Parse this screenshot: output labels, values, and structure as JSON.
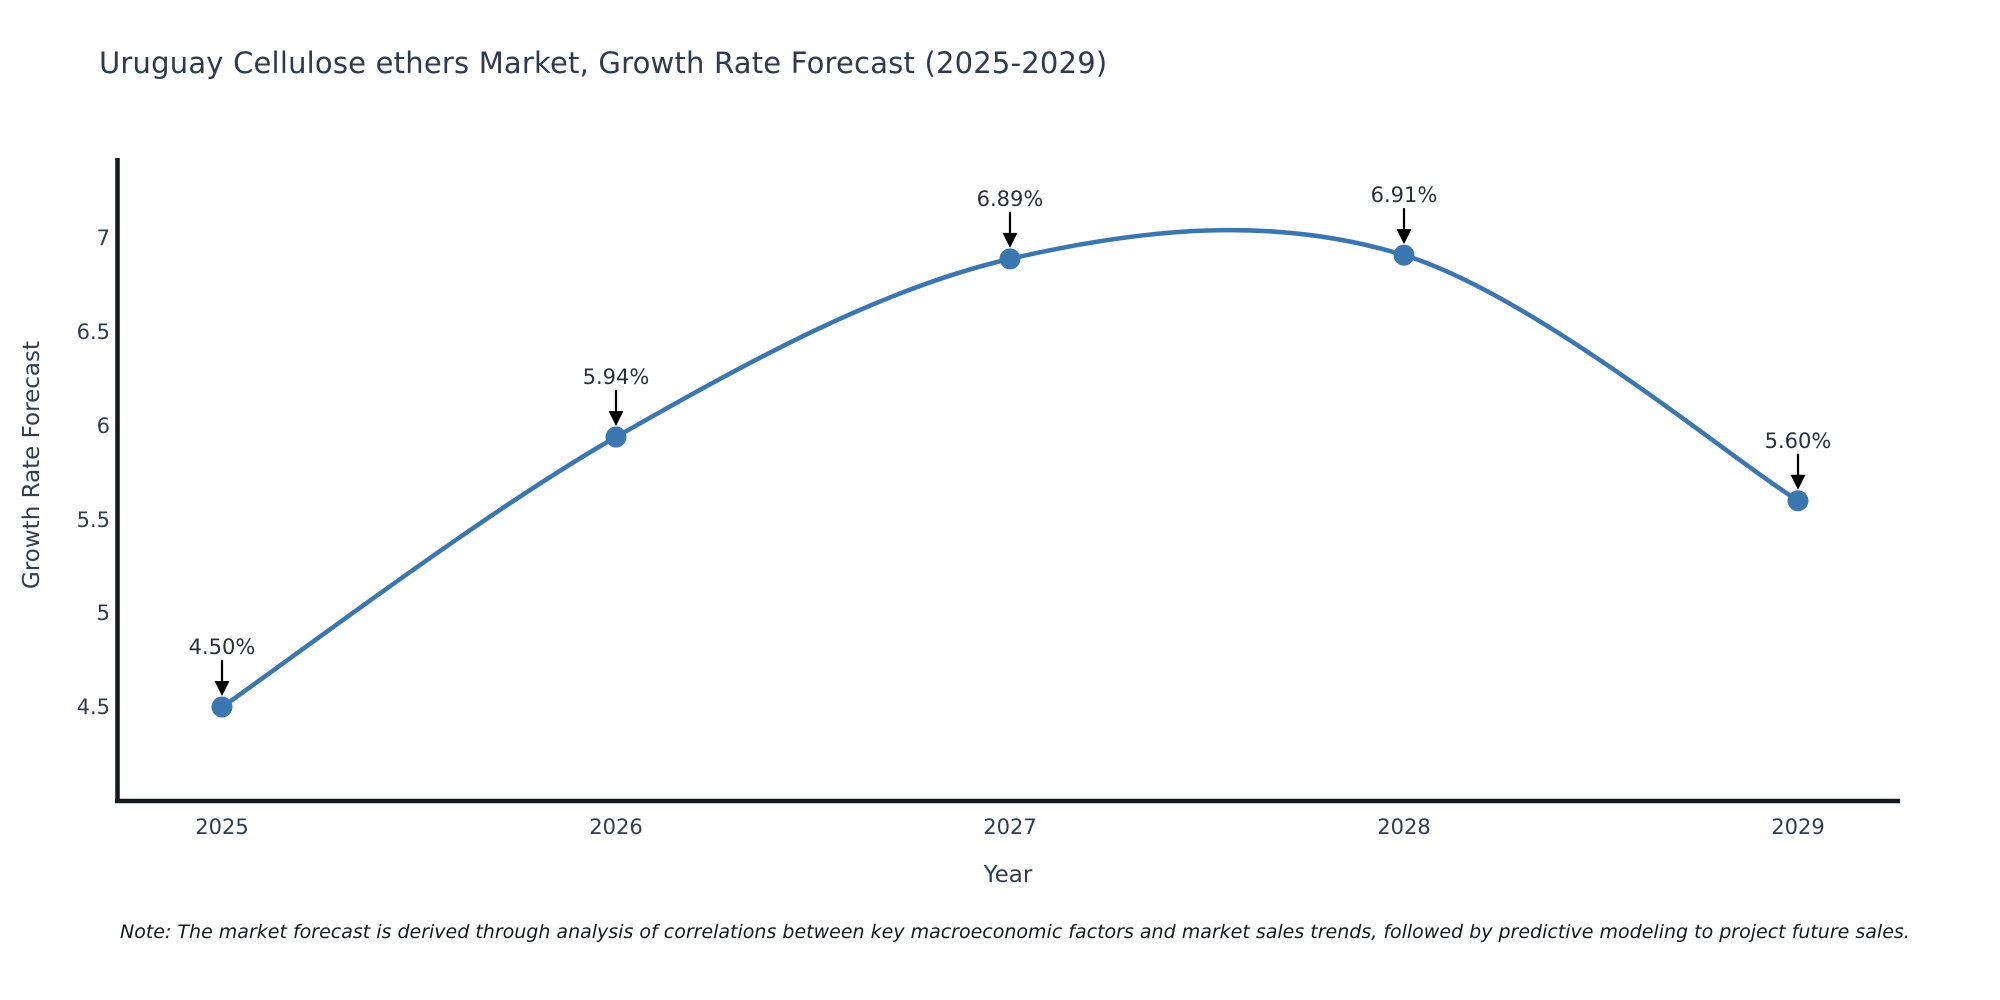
{
  "title": "Uruguay Cellulose ethers Market, Growth Rate Forecast (2025-2029)",
  "note": "Note: The market forecast is derived through analysis of correlations between key macroeconomic factors and market sales trends, followed by predictive modeling to project future sales.",
  "chart_data": {
    "type": "line",
    "title": "Uruguay Cellulose ethers Market, Growth Rate Forecast (2025-2029)",
    "xlabel": "Year",
    "ylabel": "Growth Rate Forecast",
    "x": [
      2025,
      2026,
      2027,
      2028,
      2029
    ],
    "x_tick_labels": [
      "2025",
      "2026",
      "2027",
      "2028",
      "2029"
    ],
    "series": [
      {
        "name": "Growth Rate Forecast",
        "values": [
          4.5,
          5.94,
          6.89,
          6.91,
          5.6
        ]
      }
    ],
    "point_labels": [
      "4.50%",
      "5.94%",
      "6.89%",
      "6.91%",
      "5.60%"
    ],
    "y_ticks": [
      4.5,
      5,
      5.5,
      6,
      6.5,
      7
    ],
    "y_tick_labels": [
      "4.5",
      "5",
      "5.5",
      "6",
      "6.5",
      "7"
    ],
    "ylim": [
      4.0,
      7.4
    ],
    "xlim": [
      2024.73,
      2029.26
    ],
    "grid": false,
    "legend": "none",
    "smooth": true,
    "annotations_have_arrows": true,
    "colors": {
      "line": "#3a76b0",
      "marker": "#3a76b0",
      "arrow": "#000000",
      "spine": "#16191d",
      "title_text": "#2f3a50",
      "axis_text": "#333c4c",
      "annotation_text": "#2b303b",
      "note_text": "#15181c",
      "background": "#ffffff"
    }
  }
}
